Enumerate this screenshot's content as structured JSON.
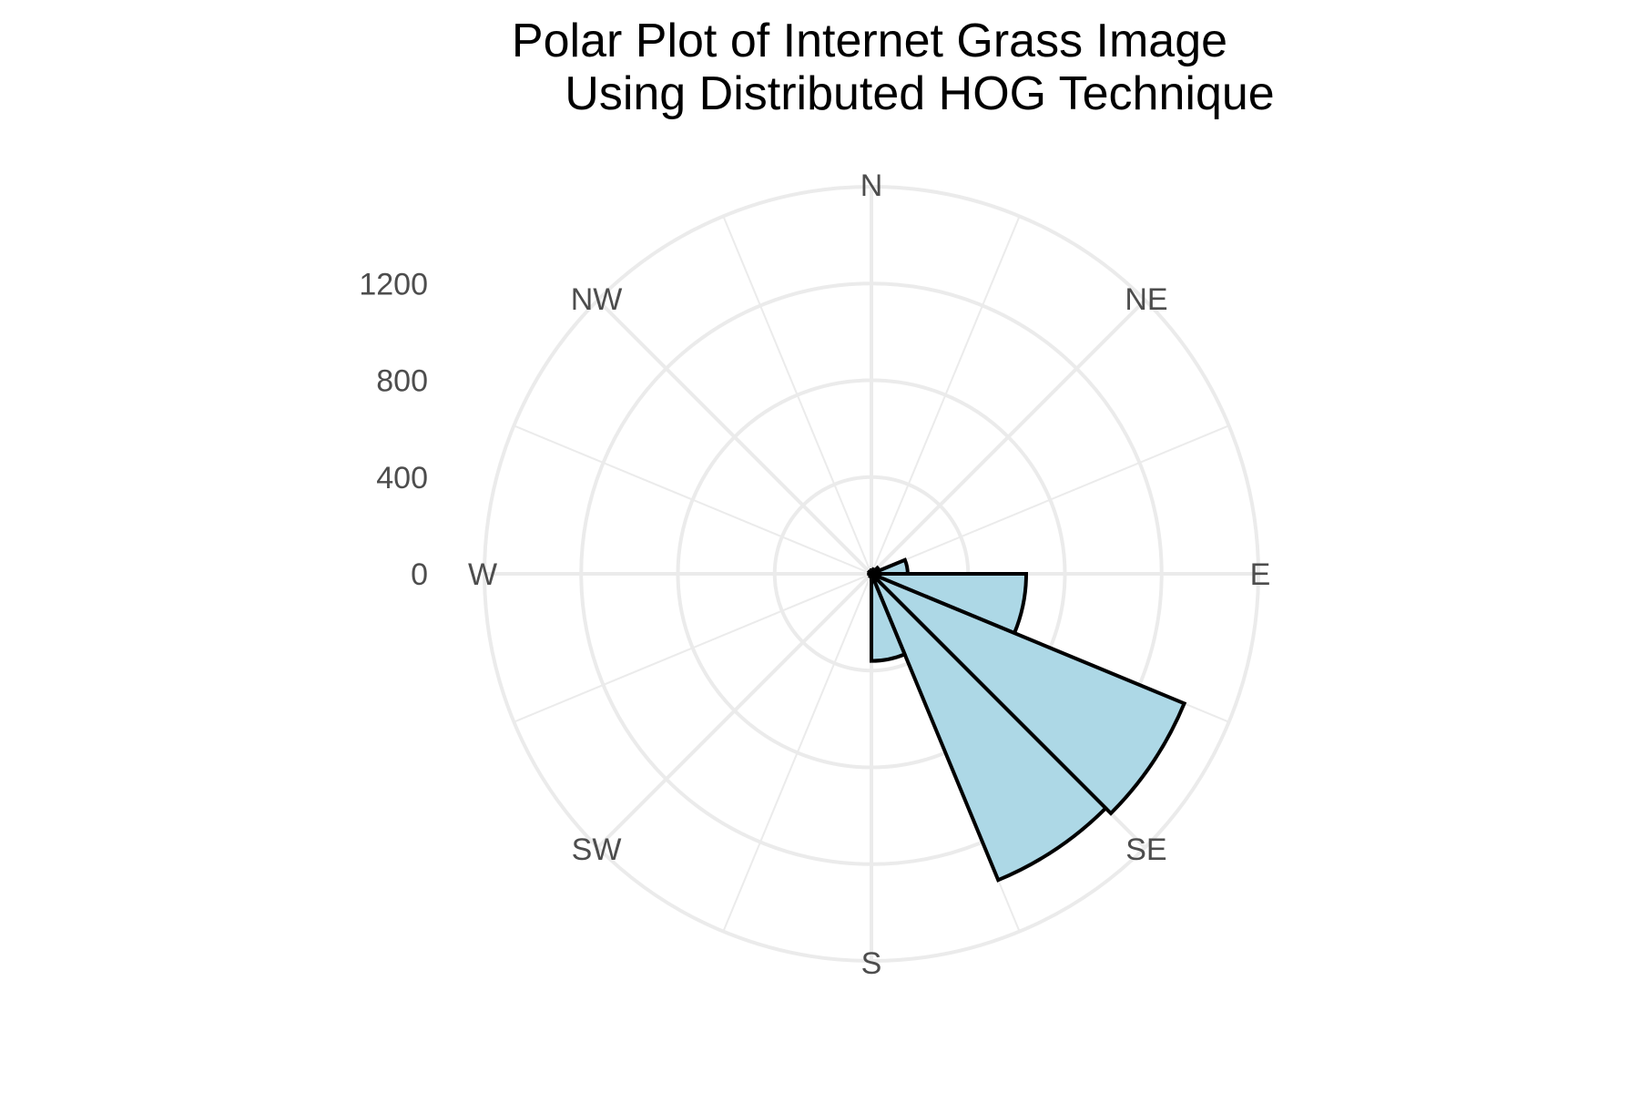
{
  "chart_data": {
    "type": "bar",
    "subtype": "polar-rose",
    "title_lines": [
      "Polar Plot of Internet Grass Image",
      "Using Distributed HOG Technique"
    ],
    "direction_labels": [
      "N",
      "NE",
      "E",
      "SE",
      "S",
      "SW",
      "W",
      "NW"
    ],
    "radial_ticks": [
      "0",
      "400",
      "800",
      "1200"
    ],
    "radial_tick_values": [
      0,
      400,
      800,
      1200
    ],
    "rlim": [
      0,
      1600
    ],
    "bin_width_deg": 22.5,
    "bins": [
      {
        "start_deg": 0,
        "value": 15
      },
      {
        "start_deg": 22.5,
        "value": 20
      },
      {
        "start_deg": 45,
        "value": 35
      },
      {
        "start_deg": 67.5,
        "value": 150
      },
      {
        "start_deg": 90,
        "value": 640
      },
      {
        "start_deg": 112.5,
        "value": 1400
      },
      {
        "start_deg": 135,
        "value": 1370
      },
      {
        "start_deg": 157.5,
        "value": 360
      },
      {
        "start_deg": 180,
        "value": 12
      },
      {
        "start_deg": 202.5,
        "value": 8
      },
      {
        "start_deg": 225,
        "value": 8
      },
      {
        "start_deg": 247.5,
        "value": 8
      },
      {
        "start_deg": 270,
        "value": 10
      },
      {
        "start_deg": 292.5,
        "value": 10
      },
      {
        "start_deg": 315,
        "value": 12
      },
      {
        "start_deg": 337.5,
        "value": 12
      }
    ],
    "colors": {
      "bar_fill": "#add8e6",
      "bar_stroke": "#000000",
      "grid": "#ebebeb",
      "label": "#4d4d4d",
      "title": "#000000"
    },
    "grid": true
  }
}
